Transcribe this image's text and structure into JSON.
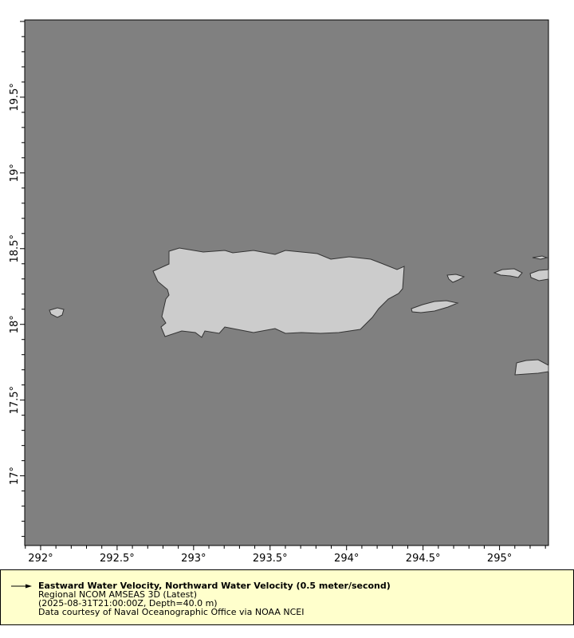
{
  "map": {
    "lon_range": [
      291.896,
      295.32
    ],
    "lat_range": [
      16.54,
      20.01
    ],
    "x_tick_labels": [
      "292°",
      "292.5°",
      "293°",
      "293.5°",
      "294°",
      "294.5°",
      "295°"
    ],
    "x_tick_values": [
      292,
      292.5,
      293,
      293.5,
      294,
      294.5,
      295
    ],
    "y_tick_labels": [
      "17°",
      "17.5°",
      "18°",
      "18.5°",
      "19°",
      "19.5°"
    ],
    "y_tick_values": [
      17,
      17.5,
      18,
      18.5,
      19,
      19.5
    ],
    "colors": {
      "ocean": "#808080",
      "land": "#cccccc",
      "coast": "#333333"
    }
  },
  "legend": {
    "title": "Eastward Water Velocity, Northward Water Velocity (0.5 meter/second)",
    "dataset": "Regional NCOM AMSEAS 3D (Latest)",
    "constraints": "(2025-08-31T21:00:00Z, Depth=40.0 m)",
    "credit": "Data courtesy of Naval Oceanographic Office via NOAA NCEI",
    "background": "#ffffcc"
  }
}
